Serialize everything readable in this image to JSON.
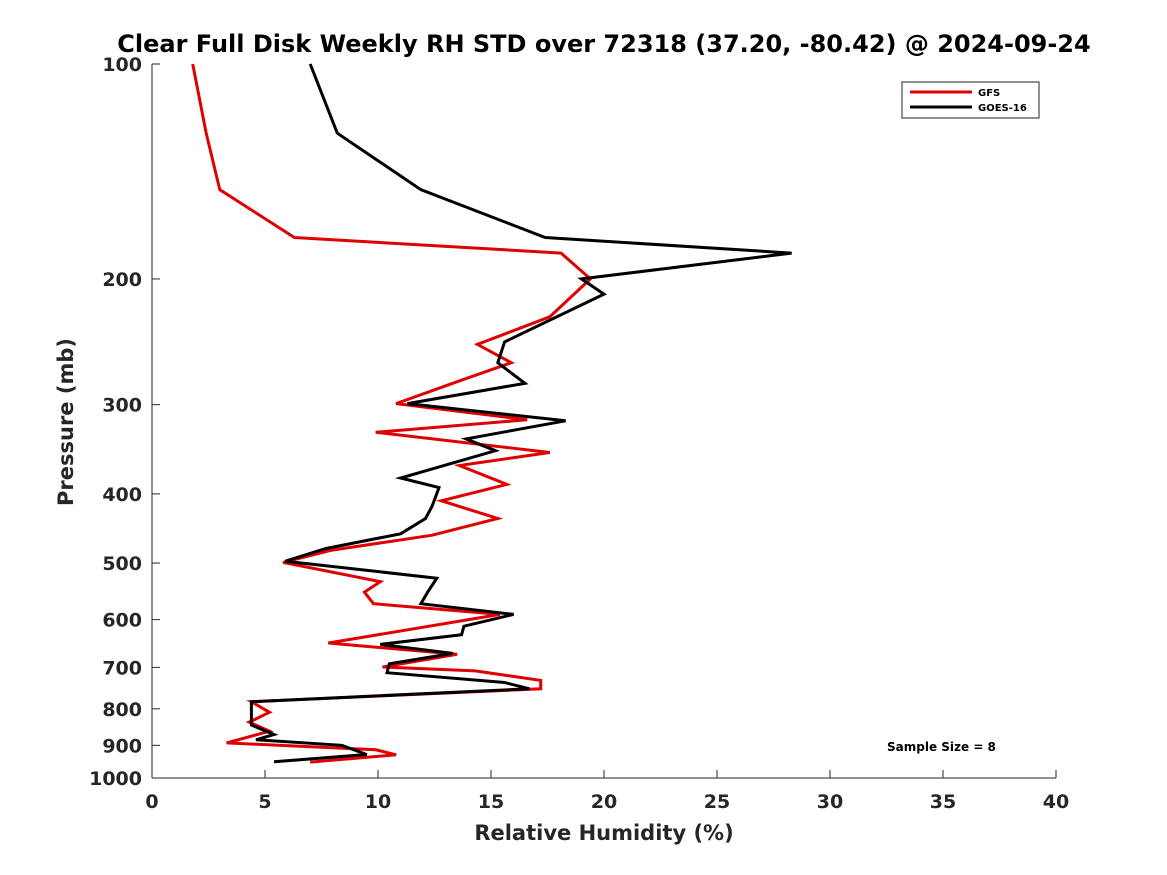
{
  "chart_data": {
    "type": "line",
    "title": "Clear Full Disk Weekly RH STD over 72318 (37.20, -80.42) @ 2024-09-24",
    "xlabel": "Relative Humidity (%)",
    "ylabel": "Pressure (mb)",
    "xlim": [
      0,
      40
    ],
    "ylim": [
      100,
      1000
    ],
    "y_scale": "log",
    "y_reversed": true,
    "x_ticks": [
      0,
      5,
      10,
      15,
      20,
      25,
      30,
      35,
      40
    ],
    "y_ticks": [
      100,
      200,
      300,
      400,
      500,
      600,
      700,
      800,
      900,
      1000
    ],
    "grid": false,
    "legend_position": "top-right",
    "annotation": "Sample Size = 8",
    "series": [
      {
        "name": "GFS",
        "color": "#e00000",
        "points": [
          [
            1.8,
            100
          ],
          [
            2.4,
            125
          ],
          [
            3.0,
            150
          ],
          [
            6.3,
            175
          ],
          [
            18.1,
            184
          ],
          [
            19.4,
            200
          ],
          [
            17.6,
            226
          ],
          [
            14.4,
            247
          ],
          [
            15.9,
            262
          ],
          [
            13.3,
            280
          ],
          [
            10.8,
            299
          ],
          [
            16.6,
            315
          ],
          [
            9.9,
            328
          ],
          [
            17.6,
            350
          ],
          [
            13.6,
            365
          ],
          [
            15.7,
            388
          ],
          [
            12.8,
            409
          ],
          [
            15.3,
            433
          ],
          [
            12.4,
            457
          ],
          [
            7.9,
            480
          ],
          [
            5.8,
            499
          ],
          [
            10.1,
            531
          ],
          [
            9.4,
            549
          ],
          [
            9.8,
            570
          ],
          [
            15.4,
            590
          ],
          [
            7.8,
            647
          ],
          [
            13.5,
            671
          ],
          [
            10.2,
            699
          ],
          [
            14.3,
            708
          ],
          [
            17.2,
            730
          ],
          [
            17.2,
            750
          ],
          [
            4.4,
            782
          ],
          [
            5.2,
            809
          ],
          [
            4.3,
            835
          ],
          [
            5.2,
            860
          ],
          [
            3.3,
            893
          ],
          [
            9.9,
            913
          ],
          [
            10.8,
            928
          ],
          [
            7.0,
            950
          ]
        ]
      },
      {
        "name": "GOES-16",
        "color": "#000000",
        "points": [
          [
            7.0,
            100
          ],
          [
            8.2,
            125
          ],
          [
            11.9,
            150
          ],
          [
            17.4,
            175
          ],
          [
            28.3,
            184
          ],
          [
            19.0,
            200
          ],
          [
            20.0,
            210
          ],
          [
            15.6,
            245
          ],
          [
            15.3,
            262
          ],
          [
            16.5,
            280
          ],
          [
            11.3,
            299
          ],
          [
            18.3,
            316
          ],
          [
            13.9,
            335
          ],
          [
            15.2,
            348
          ],
          [
            11.0,
            380
          ],
          [
            12.7,
            392
          ],
          [
            12.4,
            416
          ],
          [
            12.1,
            433
          ],
          [
            11.0,
            455
          ],
          [
            7.7,
            477
          ],
          [
            5.9,
            497
          ],
          [
            12.6,
            525
          ],
          [
            12.2,
            549
          ],
          [
            11.9,
            570
          ],
          [
            16.0,
            590
          ],
          [
            13.8,
            613
          ],
          [
            13.7,
            630
          ],
          [
            10.1,
            650
          ],
          [
            13.3,
            669
          ],
          [
            10.5,
            692
          ],
          [
            10.4,
            712
          ],
          [
            15.6,
            735
          ],
          [
            16.7,
            750
          ],
          [
            4.4,
            782
          ],
          [
            4.4,
            808
          ],
          [
            4.4,
            843
          ],
          [
            5.4,
            869
          ],
          [
            4.6,
            884
          ],
          [
            8.4,
            900
          ],
          [
            9.5,
            927
          ],
          [
            5.4,
            949
          ]
        ]
      }
    ]
  }
}
